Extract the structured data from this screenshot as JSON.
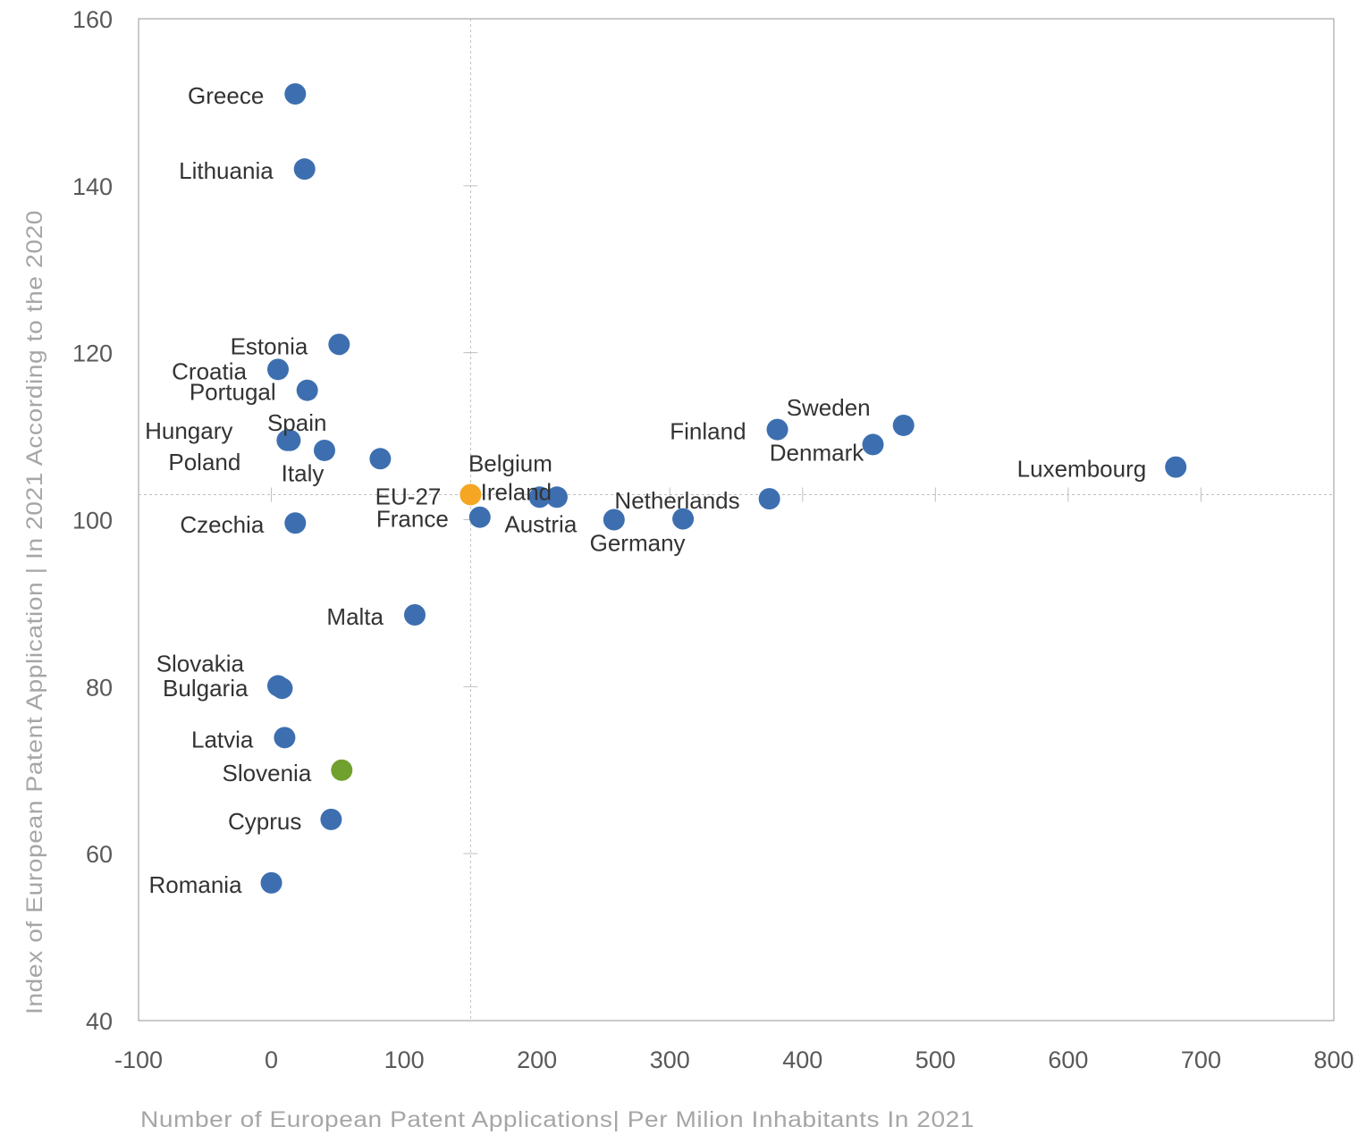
{
  "chart_data": {
    "type": "scatter",
    "xlabel": "Number of European Patent Applications| Per Milion Inhabitants In 2021",
    "ylabel": "Index of European Patent Application | In 2021 According to the 2020",
    "xlim": [
      -100,
      800
    ],
    "ylim": [
      40,
      160
    ],
    "x_ticks": [
      -100,
      0,
      100,
      200,
      300,
      400,
      500,
      600,
      700,
      800
    ],
    "y_ticks": [
      40,
      60,
      80,
      100,
      120,
      140,
      160
    ],
    "reference_lines": {
      "x": 150,
      "y": 103
    },
    "grid": false,
    "colors": {
      "default": "#3d6fb0",
      "eu27": "#f5a623",
      "slovenia": "#70a02e",
      "default_label": "#333333"
    },
    "points": [
      {
        "name": "Greece",
        "x": 18,
        "y": 151,
        "color_key": "default"
      },
      {
        "name": "Lithuania",
        "x": 25,
        "y": 142,
        "color_key": "default"
      },
      {
        "name": "Estonia",
        "x": 51,
        "y": 121,
        "color_key": "default"
      },
      {
        "name": "Croatia",
        "x": 5,
        "y": 118,
        "color_key": "default"
      },
      {
        "name": "Portugal",
        "x": 27,
        "y": 115.5,
        "color_key": "default"
      },
      {
        "name": "Hungary",
        "x": 12,
        "y": 109.5,
        "color_key": "default"
      },
      {
        "name": "Spain",
        "x": 40,
        "y": 108.3,
        "color_key": "default"
      },
      {
        "name": "Poland",
        "x": 14,
        "y": 109.5,
        "color_key": "default"
      },
      {
        "name": "Italy",
        "x": 82,
        "y": 107.3,
        "color_key": "default"
      },
      {
        "name": "Belgium",
        "x": 215,
        "y": 102.7,
        "color_key": "default"
      },
      {
        "name": "Ireland",
        "x": 202,
        "y": 102.7,
        "color_key": "default"
      },
      {
        "name": "EU-27",
        "x": 150,
        "y": 103,
        "color_key": "eu27"
      },
      {
        "name": "France",
        "x": 157,
        "y": 100.3,
        "color_key": "default"
      },
      {
        "name": "Austria",
        "x": 258,
        "y": 100,
        "color_key": "default"
      },
      {
        "name": "Germany",
        "x": 310,
        "y": 100.1,
        "color_key": "default"
      },
      {
        "name": "Netherlands",
        "x": 375,
        "y": 102.5,
        "color_key": "default"
      },
      {
        "name": "Finland",
        "x": 381,
        "y": 110.8,
        "color_key": "default"
      },
      {
        "name": "Sweden",
        "x": 476,
        "y": 111.3,
        "color_key": "default"
      },
      {
        "name": "Denmark",
        "x": 453,
        "y": 109,
        "color_key": "default"
      },
      {
        "name": "Luxembourg",
        "x": 681,
        "y": 106.3,
        "color_key": "default"
      },
      {
        "name": "Czechia",
        "x": 18,
        "y": 99.6,
        "color_key": "default"
      },
      {
        "name": "Malta",
        "x": 108,
        "y": 88.6,
        "color_key": "default"
      },
      {
        "name": "Slovakia",
        "x": 5,
        "y": 80.1,
        "color_key": "default"
      },
      {
        "name": "Bulgaria",
        "x": 8,
        "y": 79.8,
        "color_key": "default"
      },
      {
        "name": "Latvia",
        "x": 10,
        "y": 73.9,
        "color_key": "default"
      },
      {
        "name": "Slovenia",
        "x": 53,
        "y": 70,
        "color_key": "slovenia"
      },
      {
        "name": "Cyprus",
        "x": 45,
        "y": 64.1,
        "color_key": "default"
      },
      {
        "name": "Romania",
        "x": 0,
        "y": 56.5,
        "color_key": "default"
      }
    ]
  }
}
